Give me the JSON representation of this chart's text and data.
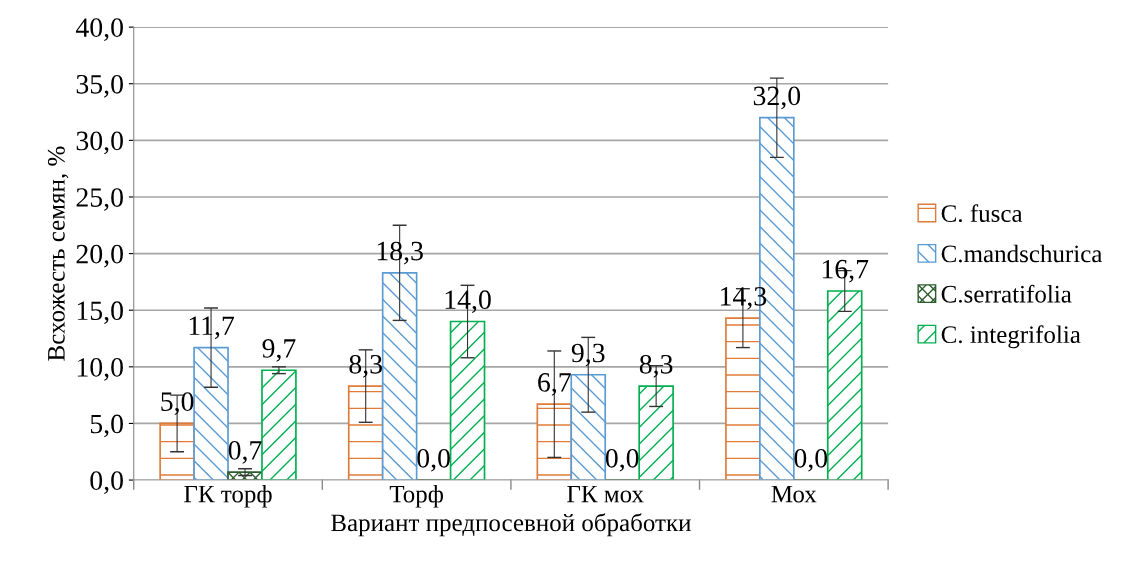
{
  "chart_data": {
    "type": "bar",
    "xlabel": "Вариант предпосевной обработки",
    "ylabel": "Всхожесть семян, %",
    "categories": [
      "ГК торф",
      "Торф",
      "ГК мох",
      "Мох"
    ],
    "series": [
      {
        "name": "C. fusca",
        "color": "#e07b39",
        "values": [
          5.0,
          8.3,
          6.7,
          14.3
        ],
        "errors": [
          2.5,
          3.2,
          4.7,
          2.6
        ],
        "value_labels": [
          "5,0",
          "8,3",
          "6,7",
          "14,3"
        ]
      },
      {
        "name": "C.mandschurica",
        "color": "#5b9bd5",
        "values": [
          11.7,
          18.3,
          9.3,
          32.0
        ],
        "errors": [
          3.5,
          4.2,
          3.3,
          3.5
        ],
        "value_labels": [
          "11,7",
          "18,3",
          "9,3",
          "32,0"
        ]
      },
      {
        "name": "C.serratifolia",
        "color": "#2e5c2e",
        "values": [
          0.7,
          0.0,
          0.0,
          0.0
        ],
        "errors": [
          0.3,
          null,
          null,
          null
        ],
        "value_labels": [
          "0,7",
          "0,0",
          "0,0",
          "0,0"
        ]
      },
      {
        "name": "C. integrifolia",
        "color": "#00b050",
        "values": [
          9.7,
          14.0,
          8.3,
          16.7
        ],
        "errors": [
          0.3,
          3.2,
          1.8,
          1.8
        ],
        "value_labels": [
          "9,7",
          "14,0",
          "8,3",
          "16,7"
        ]
      }
    ],
    "ylim": [
      0,
      40
    ],
    "yticks": [
      {
        "value": 0,
        "label": "0,0"
      },
      {
        "value": 5,
        "label": "5,0"
      },
      {
        "value": 10,
        "label": "10,0"
      },
      {
        "value": 15,
        "label": "15,0"
      },
      {
        "value": 20,
        "label": "20,0"
      },
      {
        "value": 25,
        "label": "25,0"
      },
      {
        "value": 30,
        "label": "30,0"
      },
      {
        "value": 35,
        "label": "35,0"
      },
      {
        "value": 40,
        "label": "40,0"
      }
    ],
    "grid": "y",
    "legend": "right"
  }
}
